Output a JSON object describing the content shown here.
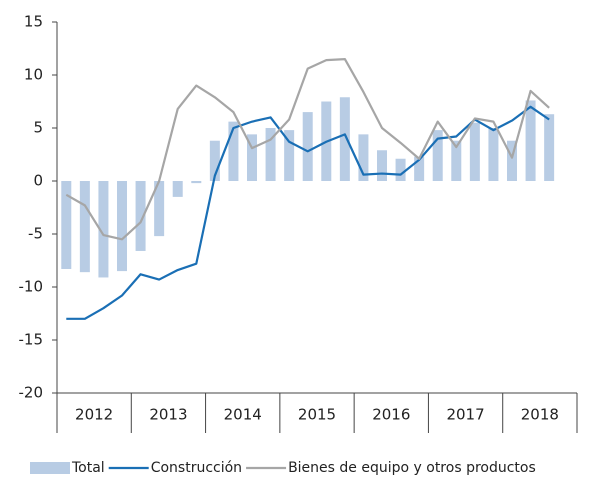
{
  "chart_data": {
    "type": "bar_line",
    "categories": [
      null,
      null,
      null,
      null,
      null,
      null,
      null,
      null,
      null,
      null,
      null,
      null,
      null,
      null,
      null,
      null,
      null,
      null,
      null,
      null,
      null,
      null,
      null,
      null,
      null,
      null,
      null
    ],
    "year_groups": [
      "2012",
      "2013",
      "2014",
      "2015",
      "2016",
      "2017",
      "2018"
    ],
    "series": [
      {
        "name": "Total",
        "type": "bar",
        "color": "#b8cce4",
        "values": [
          -8.3,
          -8.6,
          -9.1,
          -8.5,
          -6.6,
          -5.2,
          -1.5,
          -0.2,
          3.8,
          5.6,
          4.4,
          5.0,
          4.8,
          6.5,
          7.5,
          7.9,
          4.4,
          2.9,
          2.1,
          2.3,
          4.8,
          3.8,
          5.5,
          5.0,
          3.8,
          7.6,
          6.3
        ]
      },
      {
        "name": "Construcción",
        "type": "line",
        "color": "#1a6fb5",
        "values": [
          -13,
          -13,
          -12,
          -10.8,
          -8.8,
          -9.3,
          -8.4,
          -7.8,
          0.5,
          5.0,
          5.6,
          6.0,
          3.7,
          2.8,
          3.7,
          4.4,
          0.6,
          0.7,
          0.6,
          2.0,
          4.0,
          4.2,
          5.8,
          4.8,
          5.7,
          7.0,
          5.8
        ]
      },
      {
        "name": "Bienes de equipo y otros productos",
        "type": "line",
        "color": "#a6a6a6",
        "values": [
          -1.3,
          -2.3,
          -5.1,
          -5.5,
          -3.9,
          0.0,
          6.8,
          9.0,
          7.9,
          6.5,
          3.1,
          3.9,
          5.8,
          10.6,
          11.4,
          11.5,
          8.4,
          5.0,
          3.6,
          2.1,
          5.6,
          3.2,
          5.9,
          5.6,
          2.2,
          8.5,
          6.9
        ]
      }
    ],
    "ylim": [
      -20,
      15
    ],
    "yticks": [
      -20,
      -15,
      -10,
      -5,
      0,
      5,
      10,
      15
    ]
  }
}
